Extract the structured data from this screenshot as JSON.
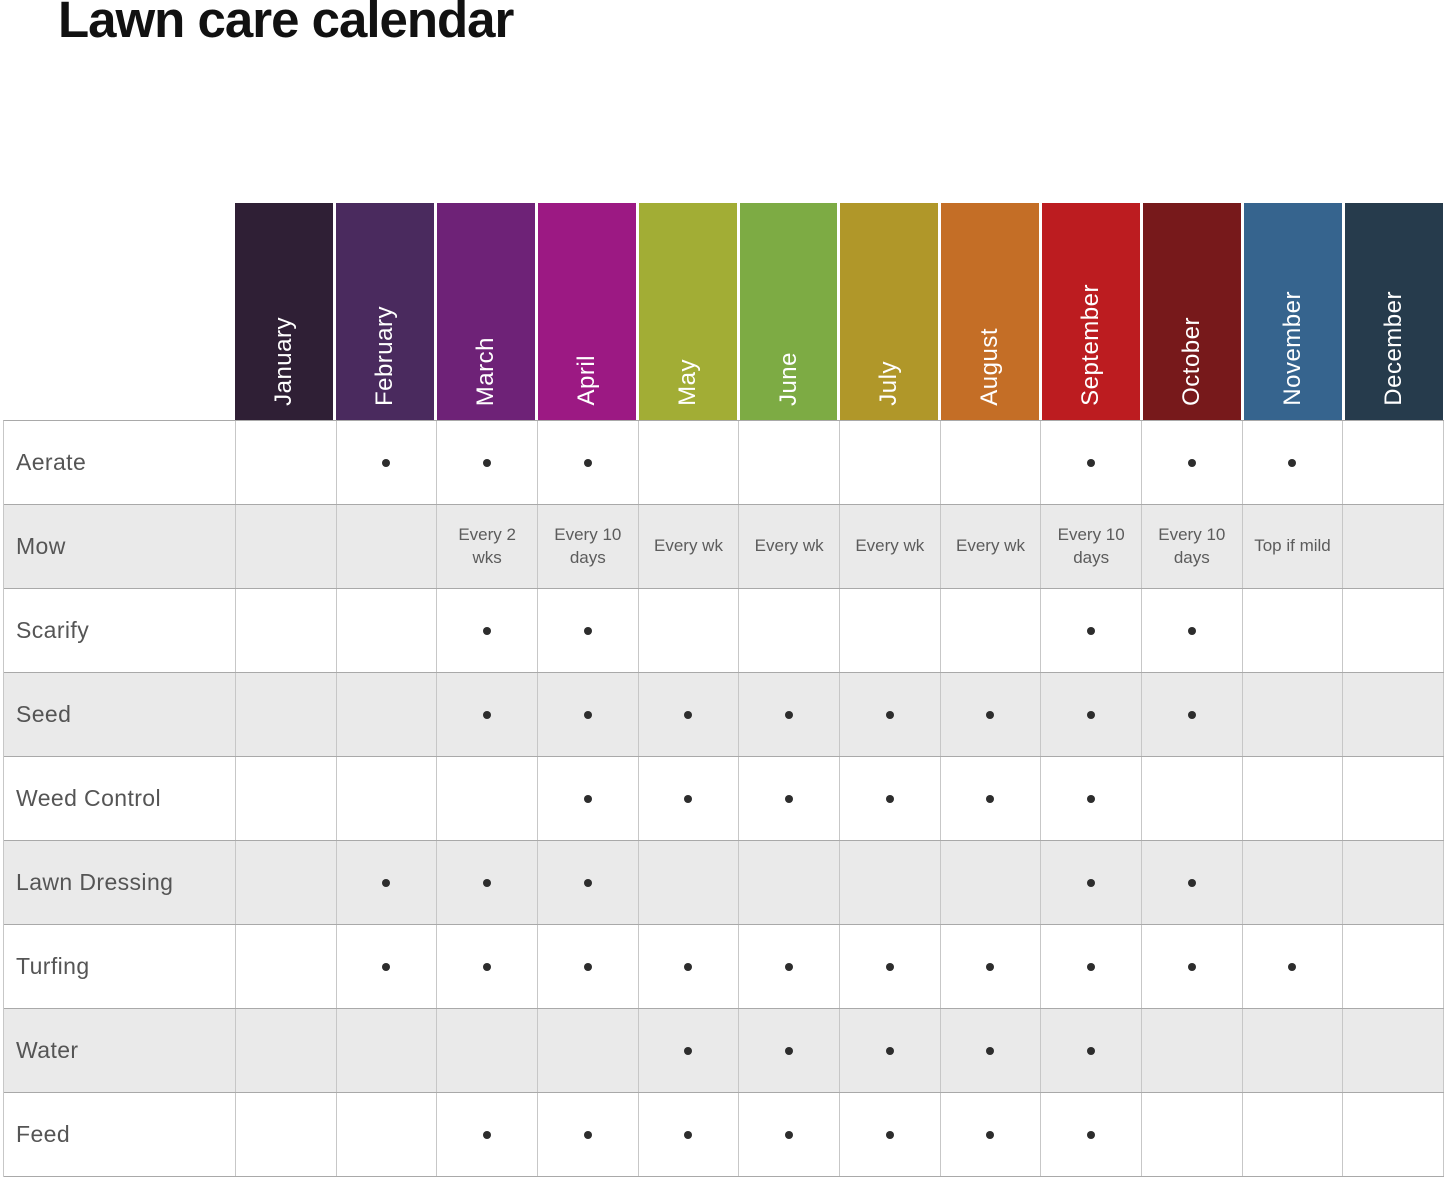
{
  "title": "Lawn care calendar",
  "months": [
    {
      "name": "January",
      "color": "#2F1F35"
    },
    {
      "name": "February",
      "color": "#4A2A5E"
    },
    {
      "name": "March",
      "color": "#6E2277"
    },
    {
      "name": "April",
      "color": "#9C1983"
    },
    {
      "name": "May",
      "color": "#A2AD35"
    },
    {
      "name": "June",
      "color": "#7DAB44"
    },
    {
      "name": "July",
      "color": "#B09729"
    },
    {
      "name": "August",
      "color": "#C46E26"
    },
    {
      "name": "September",
      "color": "#BC1C20"
    },
    {
      "name": "October",
      "color": "#77191B"
    },
    {
      "name": "November",
      "color": "#36648E"
    },
    {
      "name": "December",
      "color": "#263B4C"
    }
  ],
  "marker": "•",
  "chart_data": {
    "type": "table",
    "title": "Lawn care calendar",
    "columns": [
      "January",
      "February",
      "March",
      "April",
      "May",
      "June",
      "July",
      "August",
      "September",
      "October",
      "November",
      "December"
    ],
    "rows": [
      {
        "task": "Aerate",
        "cells": [
          "",
          "•",
          "•",
          "•",
          "",
          "",
          "",
          "",
          "•",
          "•",
          "•",
          ""
        ]
      },
      {
        "task": "Mow",
        "cells": [
          "",
          "",
          "Every 2 wks",
          "Every 10 days",
          "Every wk",
          "Every wk",
          "Every wk",
          "Every wk",
          "Every 10 days",
          "Every 10 days",
          "Top if mild",
          ""
        ]
      },
      {
        "task": "Scarify",
        "cells": [
          "",
          "",
          "•",
          "•",
          "",
          "",
          "",
          "",
          "•",
          "•",
          "",
          ""
        ]
      },
      {
        "task": "Seed",
        "cells": [
          "",
          "",
          "•",
          "•",
          "•",
          "•",
          "•",
          "•",
          "•",
          "•",
          "",
          ""
        ]
      },
      {
        "task": "Weed Control",
        "cells": [
          "",
          "",
          "",
          "•",
          "•",
          "•",
          "•",
          "•",
          "•",
          "",
          "",
          ""
        ]
      },
      {
        "task": "Lawn Dressing",
        "cells": [
          "",
          "•",
          "•",
          "•",
          "",
          "",
          "",
          "",
          "•",
          "•",
          "",
          ""
        ]
      },
      {
        "task": "Turfing",
        "cells": [
          "",
          "•",
          "•",
          "•",
          "•",
          "•",
          "•",
          "•",
          "•",
          "•",
          "•",
          ""
        ]
      },
      {
        "task": "Water",
        "cells": [
          "",
          "",
          "",
          "",
          "•",
          "•",
          "•",
          "•",
          "•",
          "",
          "",
          ""
        ]
      },
      {
        "task": "Feed",
        "cells": [
          "",
          "",
          "•",
          "•",
          "•",
          "•",
          "•",
          "•",
          "•",
          "",
          "",
          ""
        ]
      }
    ]
  }
}
